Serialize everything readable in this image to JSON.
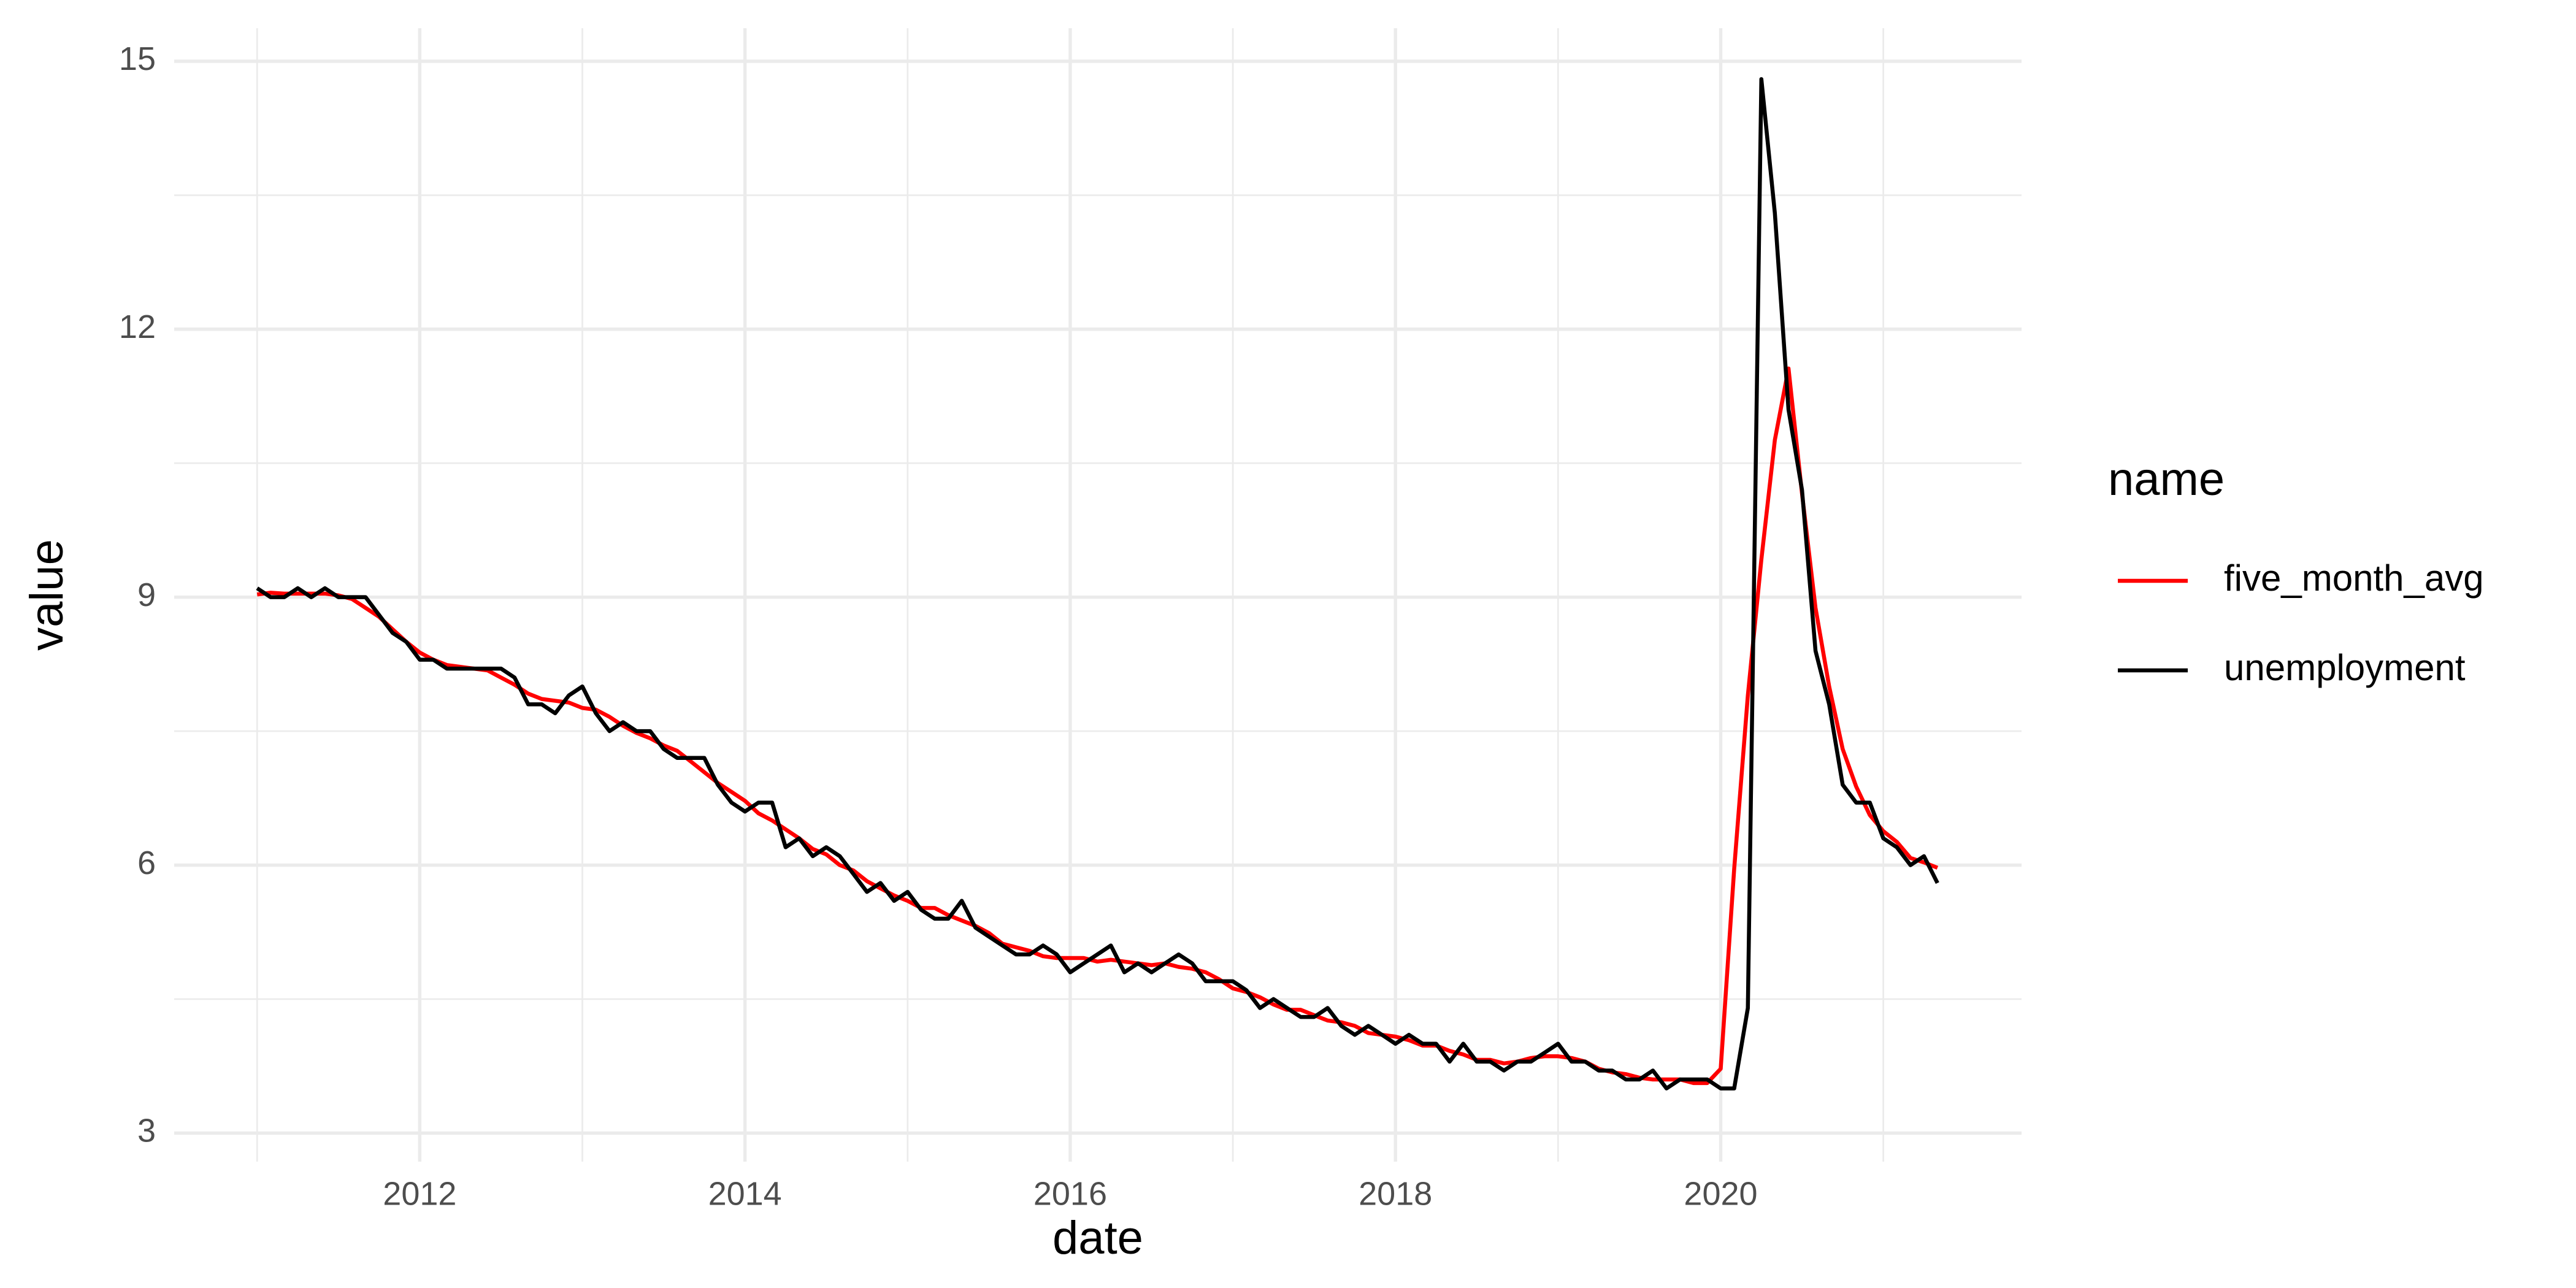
{
  "chart_data": {
    "type": "line",
    "x_label": "date",
    "y_label": "value",
    "legend_title": "name",
    "legend": "right",
    "grid": true,
    "x": [
      2011,
      2011.083,
      2011.167,
      2011.25,
      2011.333,
      2011.417,
      2011.5,
      2011.583,
      2011.667,
      2011.75,
      2011.833,
      2011.917,
      2012,
      2012.083,
      2012.167,
      2012.25,
      2012.333,
      2012.417,
      2012.5,
      2012.583,
      2012.667,
      2012.75,
      2012.833,
      2012.917,
      2013,
      2013.083,
      2013.167,
      2013.25,
      2013.333,
      2013.417,
      2013.5,
      2013.583,
      2013.667,
      2013.75,
      2013.833,
      2013.917,
      2014,
      2014.083,
      2014.167,
      2014.25,
      2014.333,
      2014.417,
      2014.5,
      2014.583,
      2014.667,
      2014.75,
      2014.833,
      2014.917,
      2015,
      2015.083,
      2015.167,
      2015.25,
      2015.333,
      2015.417,
      2015.5,
      2015.583,
      2015.667,
      2015.75,
      2015.833,
      2015.917,
      2016,
      2016.083,
      2016.167,
      2016.25,
      2016.333,
      2016.417,
      2016.5,
      2016.583,
      2016.667,
      2016.75,
      2016.833,
      2016.917,
      2017,
      2017.083,
      2017.167,
      2017.25,
      2017.333,
      2017.417,
      2017.5,
      2017.583,
      2017.667,
      2017.75,
      2017.833,
      2017.917,
      2018,
      2018.083,
      2018.167,
      2018.25,
      2018.333,
      2018.417,
      2018.5,
      2018.583,
      2018.667,
      2018.75,
      2018.833,
      2018.917,
      2019,
      2019.083,
      2019.167,
      2019.25,
      2019.333,
      2019.417,
      2019.5,
      2019.583,
      2019.667,
      2019.75,
      2019.833,
      2019.917,
      2020,
      2020.083,
      2020.167,
      2020.25,
      2020.333,
      2020.417,
      2020.5,
      2020.583,
      2020.667,
      2020.75,
      2020.833,
      2020.917,
      2021,
      2021.083,
      2021.167,
      2021.25,
      2021.333
    ],
    "series": [
      {
        "name": "five_month_avg",
        "color": "#ff0000",
        "values": [
          9.03,
          9.05,
          9.04,
          9.04,
          9.04,
          9.04,
          9.02,
          8.98,
          8.88,
          8.78,
          8.64,
          8.5,
          8.38,
          8.3,
          8.24,
          8.22,
          8.2,
          8.18,
          8.1,
          8.02,
          7.92,
          7.86,
          7.84,
          7.82,
          7.76,
          7.74,
          7.66,
          7.56,
          7.48,
          7.42,
          7.34,
          7.28,
          7.16,
          7.04,
          6.92,
          6.82,
          6.72,
          6.58,
          6.5,
          6.4,
          6.3,
          6.18,
          6.12,
          6.0,
          5.94,
          5.82,
          5.74,
          5.66,
          5.6,
          5.52,
          5.52,
          5.44,
          5.38,
          5.32,
          5.24,
          5.12,
          5.08,
          5.04,
          4.98,
          4.96,
          4.96,
          4.96,
          4.92,
          4.94,
          4.92,
          4.9,
          4.88,
          4.9,
          4.86,
          4.84,
          4.8,
          4.72,
          4.62,
          4.58,
          4.52,
          4.44,
          4.38,
          4.38,
          4.32,
          4.26,
          4.24,
          4.2,
          4.12,
          4.1,
          4.08,
          4.04,
          3.98,
          3.98,
          3.92,
          3.88,
          3.82,
          3.82,
          3.78,
          3.8,
          3.84,
          3.86,
          3.86,
          3.84,
          3.8,
          3.72,
          3.68,
          3.66,
          3.62,
          3.6,
          3.6,
          3.6,
          3.56,
          3.56,
          3.72,
          5.96,
          7.9,
          9.42,
          10.76,
          11.56,
          10.16,
          8.88,
          8.0,
          7.3,
          6.88,
          6.56,
          6.38,
          6.26,
          6.08,
          6.03,
          5.97
        ]
      },
      {
        "name": "unemployment",
        "color": "#000000",
        "values": [
          9.1,
          9.0,
          9.0,
          9.1,
          9.0,
          9.1,
          9.0,
          9.0,
          9.0,
          8.8,
          8.6,
          8.5,
          8.3,
          8.3,
          8.2,
          8.2,
          8.2,
          8.2,
          8.2,
          8.1,
          7.8,
          7.8,
          7.7,
          7.9,
          8.0,
          7.7,
          7.5,
          7.6,
          7.5,
          7.5,
          7.3,
          7.2,
          7.2,
          7.2,
          6.9,
          6.7,
          6.6,
          6.7,
          6.7,
          6.2,
          6.3,
          6.1,
          6.2,
          6.1,
          5.9,
          5.7,
          5.8,
          5.6,
          5.7,
          5.5,
          5.4,
          5.4,
          5.6,
          5.3,
          5.2,
          5.1,
          5.0,
          5.0,
          5.1,
          5.0,
          4.8,
          4.9,
          5.0,
          5.1,
          4.8,
          4.9,
          4.8,
          4.9,
          5.0,
          4.9,
          4.7,
          4.7,
          4.7,
          4.6,
          4.4,
          4.5,
          4.4,
          4.3,
          4.3,
          4.4,
          4.2,
          4.1,
          4.2,
          4.1,
          4.0,
          4.1,
          4.0,
          4.0,
          3.8,
          4.0,
          3.8,
          3.8,
          3.7,
          3.8,
          3.8,
          3.9,
          4.0,
          3.8,
          3.8,
          3.7,
          3.7,
          3.6,
          3.6,
          3.7,
          3.5,
          3.6,
          3.6,
          3.6,
          3.5,
          3.5,
          4.4,
          14.8,
          13.3,
          11.1,
          10.2,
          8.4,
          7.8,
          6.9,
          6.7,
          6.7,
          6.3,
          6.2,
          6.0,
          6.1,
          5.8
        ]
      }
    ],
    "xlim": [
      2010.49,
      2021.85
    ],
    "xticks": [
      2012,
      2014,
      2016,
      2018,
      2020
    ],
    "ylim": [
      2.68,
      15.37
    ],
    "yticks": [
      3,
      6,
      9,
      12,
      15
    ]
  }
}
